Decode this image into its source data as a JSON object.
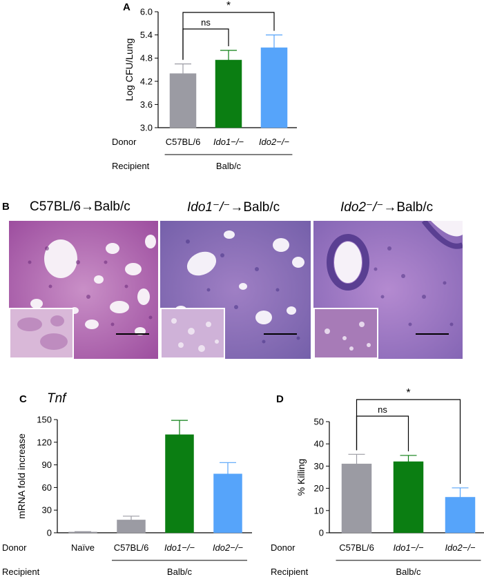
{
  "colors": {
    "c57": "#9b9ba3",
    "ido1": "#0b7e12",
    "ido2": "#56a4fa",
    "axis": "#000000"
  },
  "panel_a": {
    "letter": "A"
  },
  "panel_b": {
    "letter": "B",
    "titles": [
      {
        "prefix": "C57BL/6",
        "suffix": "→Balb/c"
      },
      {
        "prefix": "Ido1⁻/⁻",
        "suffix": "→Balb/c"
      },
      {
        "prefix": "Ido2⁻/⁻",
        "suffix": "→Balb/c"
      }
    ]
  },
  "panel_c": {
    "letter": "C",
    "gene": "Tnf"
  },
  "panel_d": {
    "letter": "D"
  },
  "chart_data": [
    {
      "id": "A",
      "type": "bar",
      "categories": [
        "C57BL/6",
        "Ido1−/−",
        "Ido2−/−"
      ],
      "italic": [
        false,
        true,
        true
      ],
      "values": [
        4.4,
        4.75,
        5.07
      ],
      "errors": [
        0.25,
        0.25,
        0.33
      ],
      "colors": [
        "#9b9ba3",
        "#0b7e12",
        "#56a4fa"
      ],
      "ylabel": "Log CFU/Lung",
      "ylim": [
        3.0,
        6.0
      ],
      "yticks": [
        "3.0",
        "3.6",
        "4.2",
        "4.8",
        "5.4",
        "6.0"
      ],
      "row_labels": {
        "donor": "Donor",
        "recipient": "Recipient"
      },
      "recipient_group": "Balb/c",
      "significance": [
        {
          "from": 0,
          "to": 1,
          "label": "ns"
        },
        {
          "from": 0,
          "to": 2,
          "label": "*"
        }
      ]
    },
    {
      "id": "C",
      "type": "bar",
      "categories": [
        "Naïve",
        "C57BL/6",
        "Ido1−/−",
        "Ido2−/−"
      ],
      "italic": [
        false,
        false,
        true,
        true
      ],
      "values": [
        1,
        17,
        130,
        78
      ],
      "errors": [
        0.5,
        5,
        19,
        15
      ],
      "colors": [
        "#9b9ba3",
        "#9b9ba3",
        "#0b7e12",
        "#56a4fa"
      ],
      "ylabel": "mRNA fold increase",
      "ylim": [
        0,
        150
      ],
      "yticks": [
        "0",
        "30",
        "60",
        "90",
        "120",
        "150"
      ],
      "row_labels": {
        "donor": "Donor",
        "recipient": "Recipient"
      },
      "recipient_group": "Balb/c",
      "significance": []
    },
    {
      "id": "D",
      "type": "bar",
      "categories": [
        "C57BL/6",
        "Ido1−/−",
        "Ido2−/−"
      ],
      "italic": [
        false,
        true,
        true
      ],
      "values": [
        31,
        32,
        16
      ],
      "errors": [
        4.3,
        2.8,
        4.2
      ],
      "colors": [
        "#9b9ba3",
        "#0b7e12",
        "#56a4fa"
      ],
      "ylabel": "% Killing",
      "ylim": [
        0,
        50
      ],
      "yticks": [
        "0",
        "10",
        "20",
        "30",
        "40",
        "50"
      ],
      "row_labels": {
        "donor": "Donor",
        "recipient": "Recipient"
      },
      "recipient_group": "Balb/c",
      "significance": [
        {
          "from": 0,
          "to": 1,
          "label": "ns"
        },
        {
          "from": 0,
          "to": 2,
          "label": "*"
        }
      ]
    }
  ]
}
